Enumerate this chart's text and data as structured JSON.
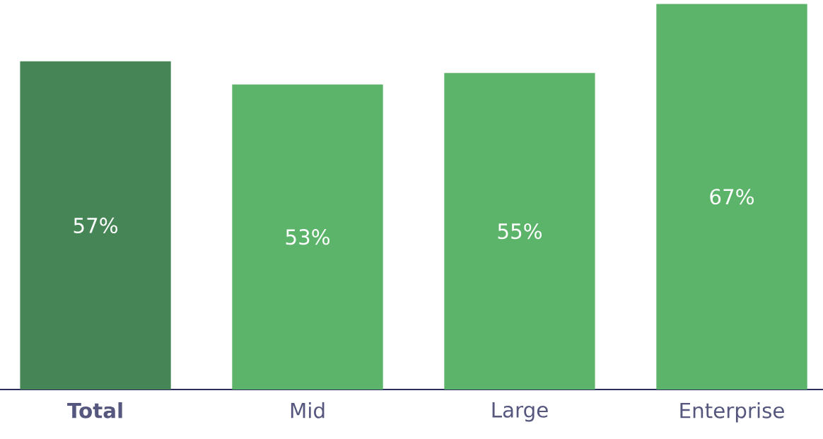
{
  "chart_data": {
    "type": "bar",
    "categories": [
      "**Total**",
      "Mid",
      "Large",
      "Enterprise"
    ],
    "values": [
      57,
      53,
      55,
      67
    ],
    "colors": [
      "#468555",
      "#5cb36a",
      "#5cb36a",
      "#5cb36a"
    ],
    "value_labels": [
      "57%",
      "53%",
      "55%",
      "67%"
    ],
    "tick_labels": "x"
  }
}
